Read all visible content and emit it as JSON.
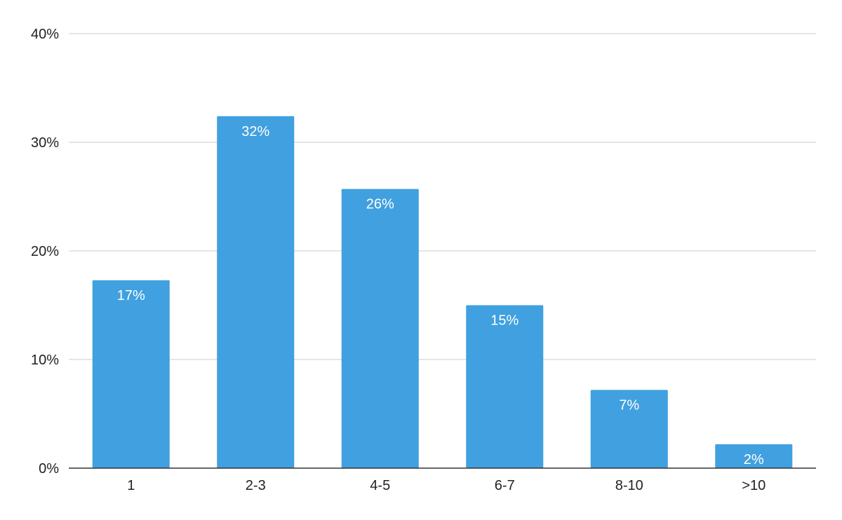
{
  "chart_data": {
    "type": "bar",
    "title": "",
    "xlabel": "",
    "ylabel": "",
    "categories": [
      "1",
      "2-3",
      "4-5",
      "6-7",
      "8-10",
      ">10"
    ],
    "values": [
      17.3,
      32.4,
      25.7,
      15.0,
      7.2,
      2.2
    ],
    "data_labels": [
      "17%",
      "32%",
      "26%",
      "15%",
      "7%",
      "2%"
    ],
    "ylim": [
      0,
      40
    ],
    "y_ticks": [
      0,
      10,
      20,
      30,
      40
    ],
    "y_tick_labels": [
      "0%",
      "10%",
      "20%",
      "30%",
      "40%"
    ],
    "grid": true,
    "legend": "none",
    "bar_color": "#41a0df",
    "label_color": "#ffffff"
  }
}
